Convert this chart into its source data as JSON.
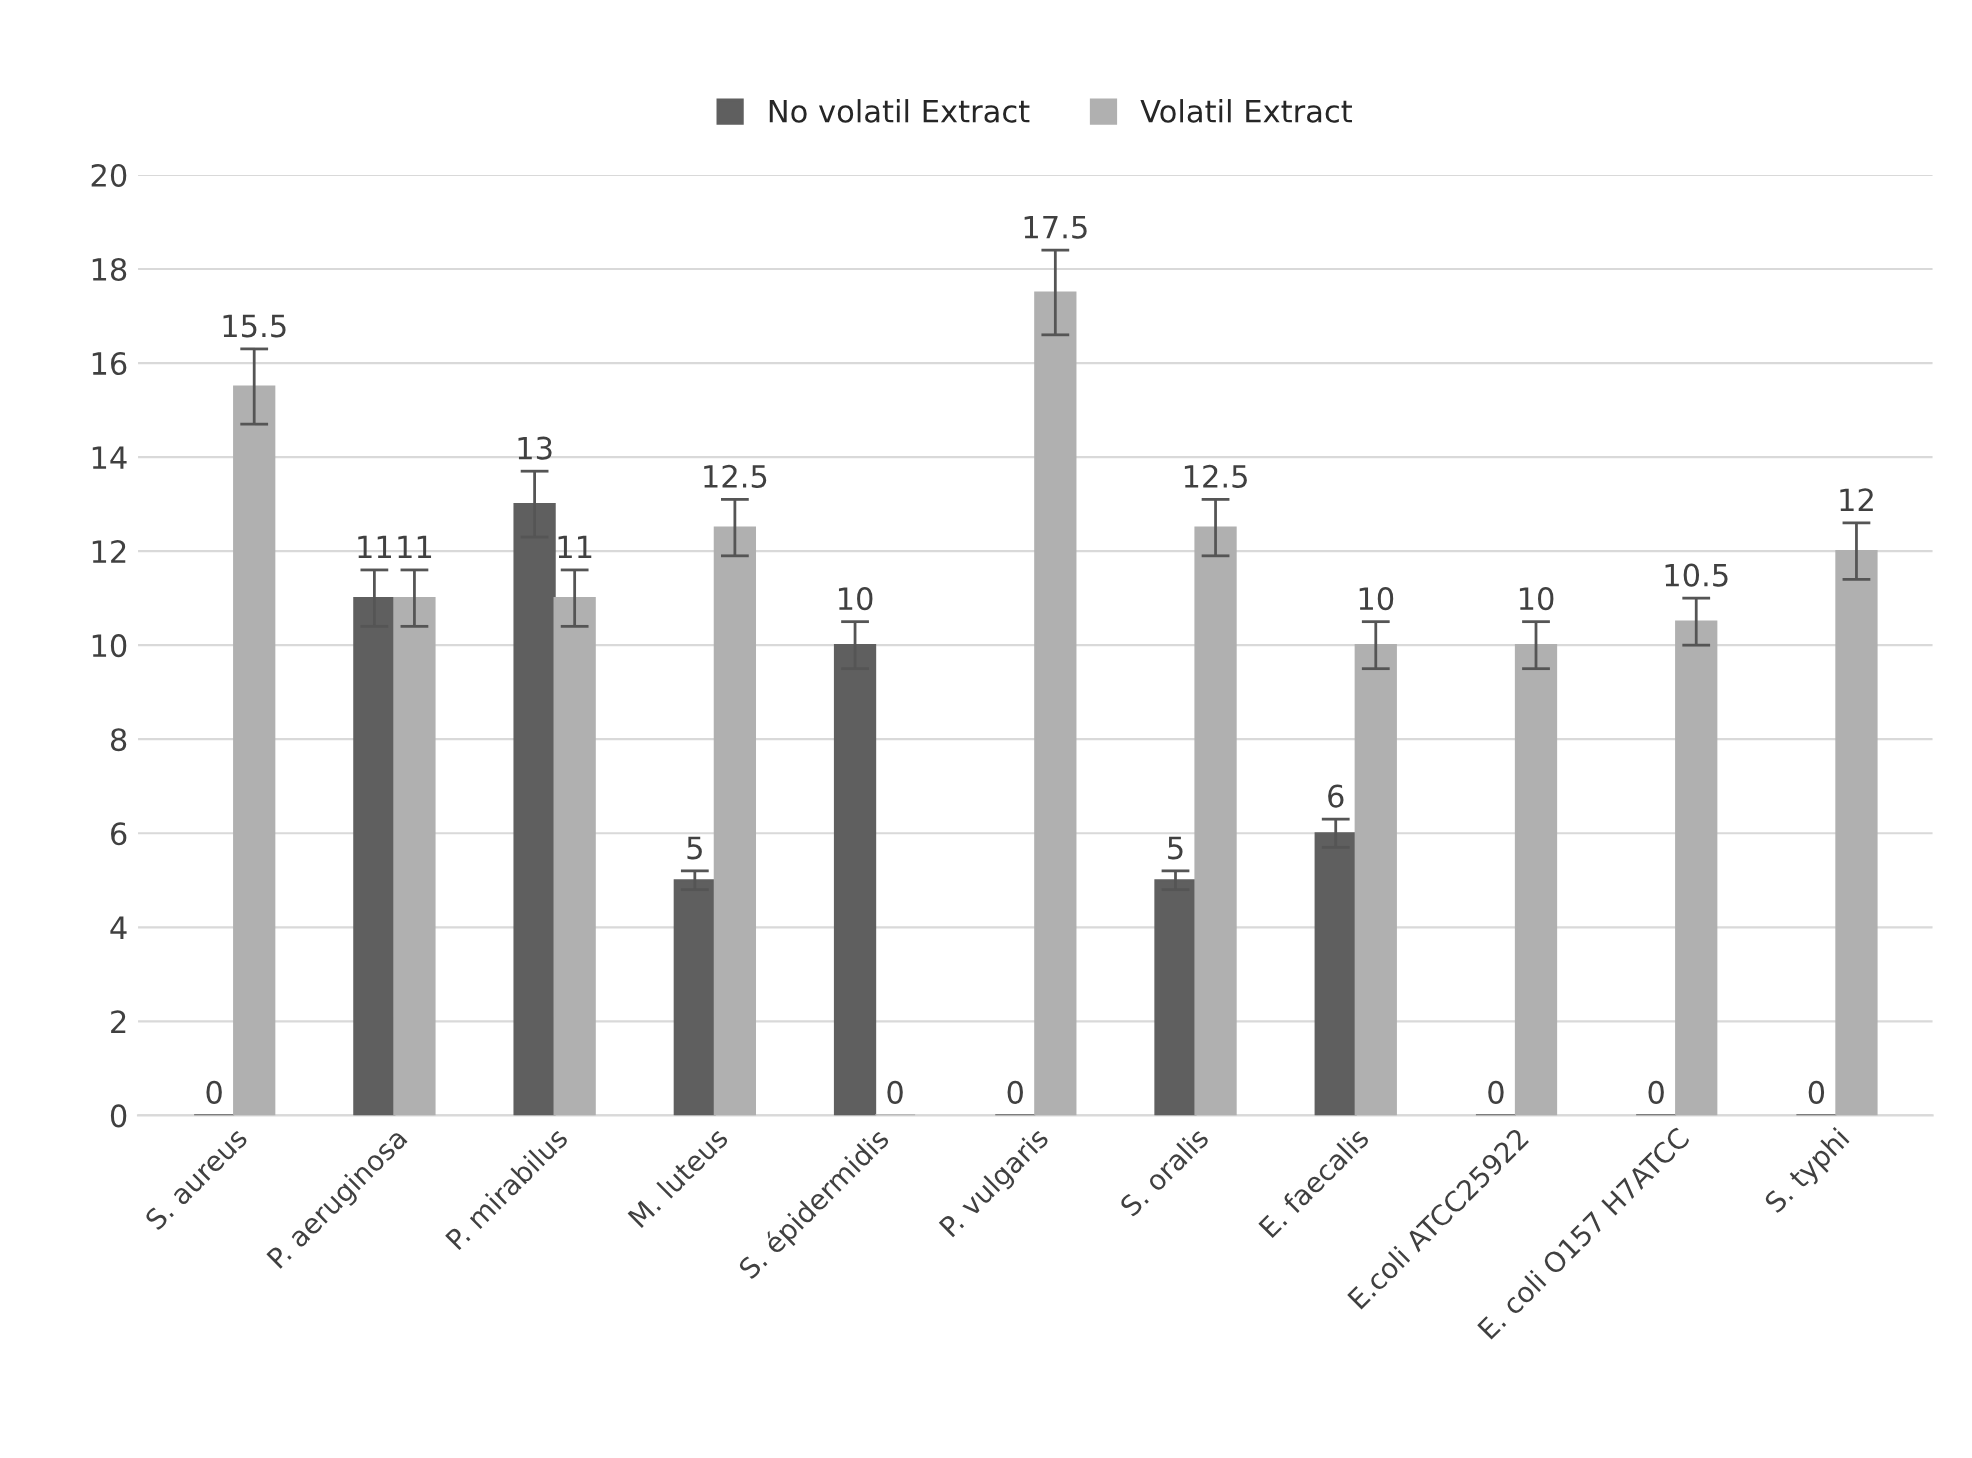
{
  "chart_data": {
    "type": "bar",
    "categories": [
      "S. aureus",
      "P. aeruginosa",
      "P. mirabilus",
      "M. luteus",
      "S. épidermidis",
      "P. vulgaris",
      "S. oralis",
      "E. faecalis",
      "E.coli ATCC25922",
      "E. coli O157 H7ATCC",
      "S. typhi"
    ],
    "series": [
      {
        "name": "No volatil Extract",
        "color": "#5f5f5f",
        "values": [
          0,
          11,
          13,
          5,
          10,
          0,
          5,
          6,
          0,
          0,
          0
        ],
        "errors": [
          null,
          0.6,
          0.7,
          0.2,
          0.5,
          null,
          0.2,
          0.3,
          null,
          null,
          null
        ]
      },
      {
        "name": "Volatil Extract",
        "color": "#b0b0b0",
        "values": [
          15.5,
          11,
          11,
          12.5,
          0,
          17.5,
          12.5,
          10,
          10,
          10.5,
          12
        ],
        "errors": [
          0.8,
          0.6,
          0.6,
          0.6,
          null,
          0.9,
          0.6,
          0.5,
          0.5,
          0.5,
          0.6
        ]
      }
    ],
    "ylim": [
      0,
      20
    ],
    "yticks": [
      0,
      2,
      4,
      6,
      8,
      10,
      12,
      14,
      16,
      18,
      20
    ],
    "grid": "y",
    "legend": "top",
    "data_labels": true
  }
}
